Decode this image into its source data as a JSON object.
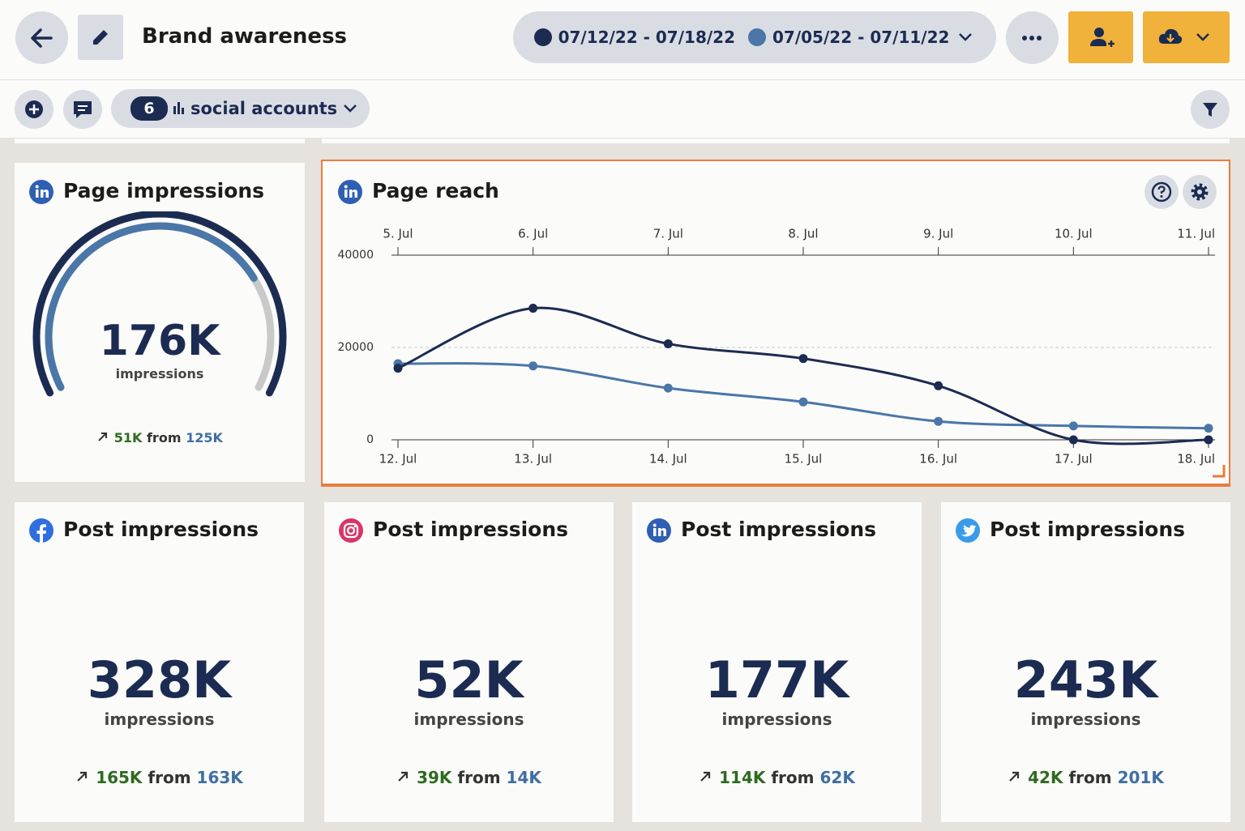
{
  "header": {
    "title": "Brand awareness"
  },
  "toolbar": {
    "account_count": 6,
    "accounts_label": "social accounts"
  },
  "page_impressions": {
    "title": "Page impressions",
    "value": "176K",
    "unit": "impressions",
    "change": "51K",
    "from": "from",
    "previous": "125K"
  },
  "chart_data": {
    "type": "line",
    "title": "Page reach",
    "categories": [
      "12. Jul",
      "13. Jul",
      "14. Jul",
      "15. Jul",
      "16. Jul",
      "17. Jul",
      "18. Jul"
    ],
    "top_categories": [
      "5. Jul",
      "6. Jul",
      "7. Jul",
      "8. Jul",
      "9. Jul",
      "10. Jul",
      "11. Jul"
    ],
    "ylim": [
      0,
      40000
    ],
    "yticks": [
      0,
      20000,
      40000
    ],
    "grid": true,
    "series": [
      {
        "name": "07/12/22 - 07/18/22",
        "color": "#1c2b52",
        "values": [
          15500,
          28500,
          20800,
          17600,
          11700,
          0,
          0
        ]
      },
      {
        "name": "07/05/22 - 07/11/22",
        "color": "#4a76a8",
        "values": [
          16500,
          16000,
          11200,
          8200,
          4000,
          3000,
          2500
        ]
      }
    ]
  },
  "post_impressions": [
    {
      "icon": "facebook",
      "title": "Post impressions",
      "value": "328K",
      "unit": "impressions",
      "change": "165K",
      "from": "from",
      "previous": "163K"
    },
    {
      "icon": "instagram",
      "title": "Post impressions",
      "value": "52K",
      "unit": "impressions",
      "change": "39K",
      "from": "from",
      "previous": "14K"
    },
    {
      "icon": "linkedin",
      "title": "Post impressions",
      "value": "177K",
      "unit": "impressions",
      "change": "114K",
      "from": "from",
      "previous": "62K"
    },
    {
      "icon": "twitter",
      "title": "Post impressions",
      "value": "243K",
      "unit": "impressions",
      "change": "42K",
      "from": "from",
      "previous": "201K"
    }
  ]
}
